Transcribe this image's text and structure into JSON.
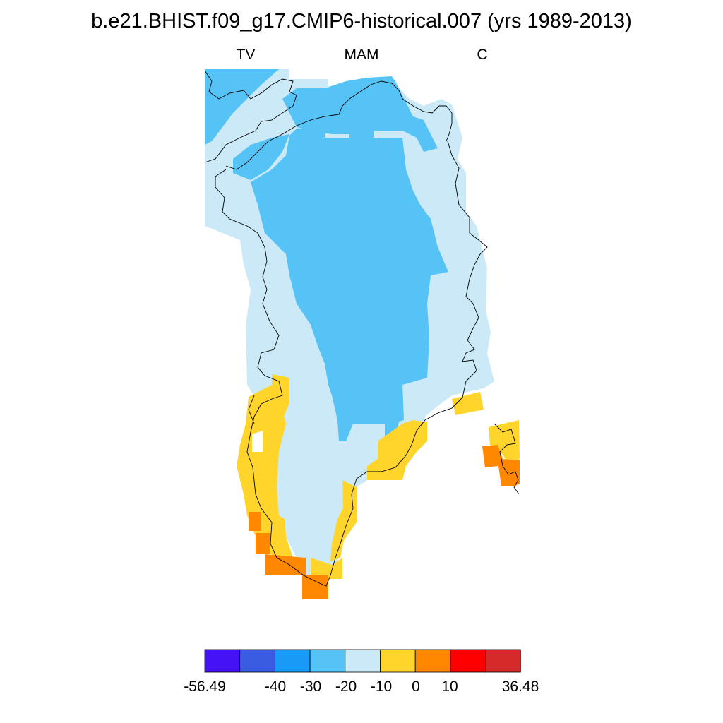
{
  "title": "b.e21.BHIST.f09_g17.CMIP6-historical.007 (yrs 1989-2013)",
  "subtitle": {
    "left": "TV",
    "center": "MAM",
    "right": "C"
  },
  "colorbar": {
    "colors": [
      "#4412f5",
      "#3a5ce0",
      "#1a9af7",
      "#55c3f5",
      "#cce9f7",
      "#ffd42b",
      "#ff8800",
      "#ff0000",
      "#d62a2a"
    ],
    "labels": [
      "-56.49",
      "-40",
      "-30",
      "-20",
      "-10",
      "0",
      "10",
      "36.48"
    ]
  },
  "map": {
    "region": "Greenland",
    "colors": {
      "c_20_30": "#55c3f5",
      "c_10_20": "#cce9f7",
      "c_0_10": "#ffd42b",
      "c_10p": "#ff8800"
    }
  }
}
